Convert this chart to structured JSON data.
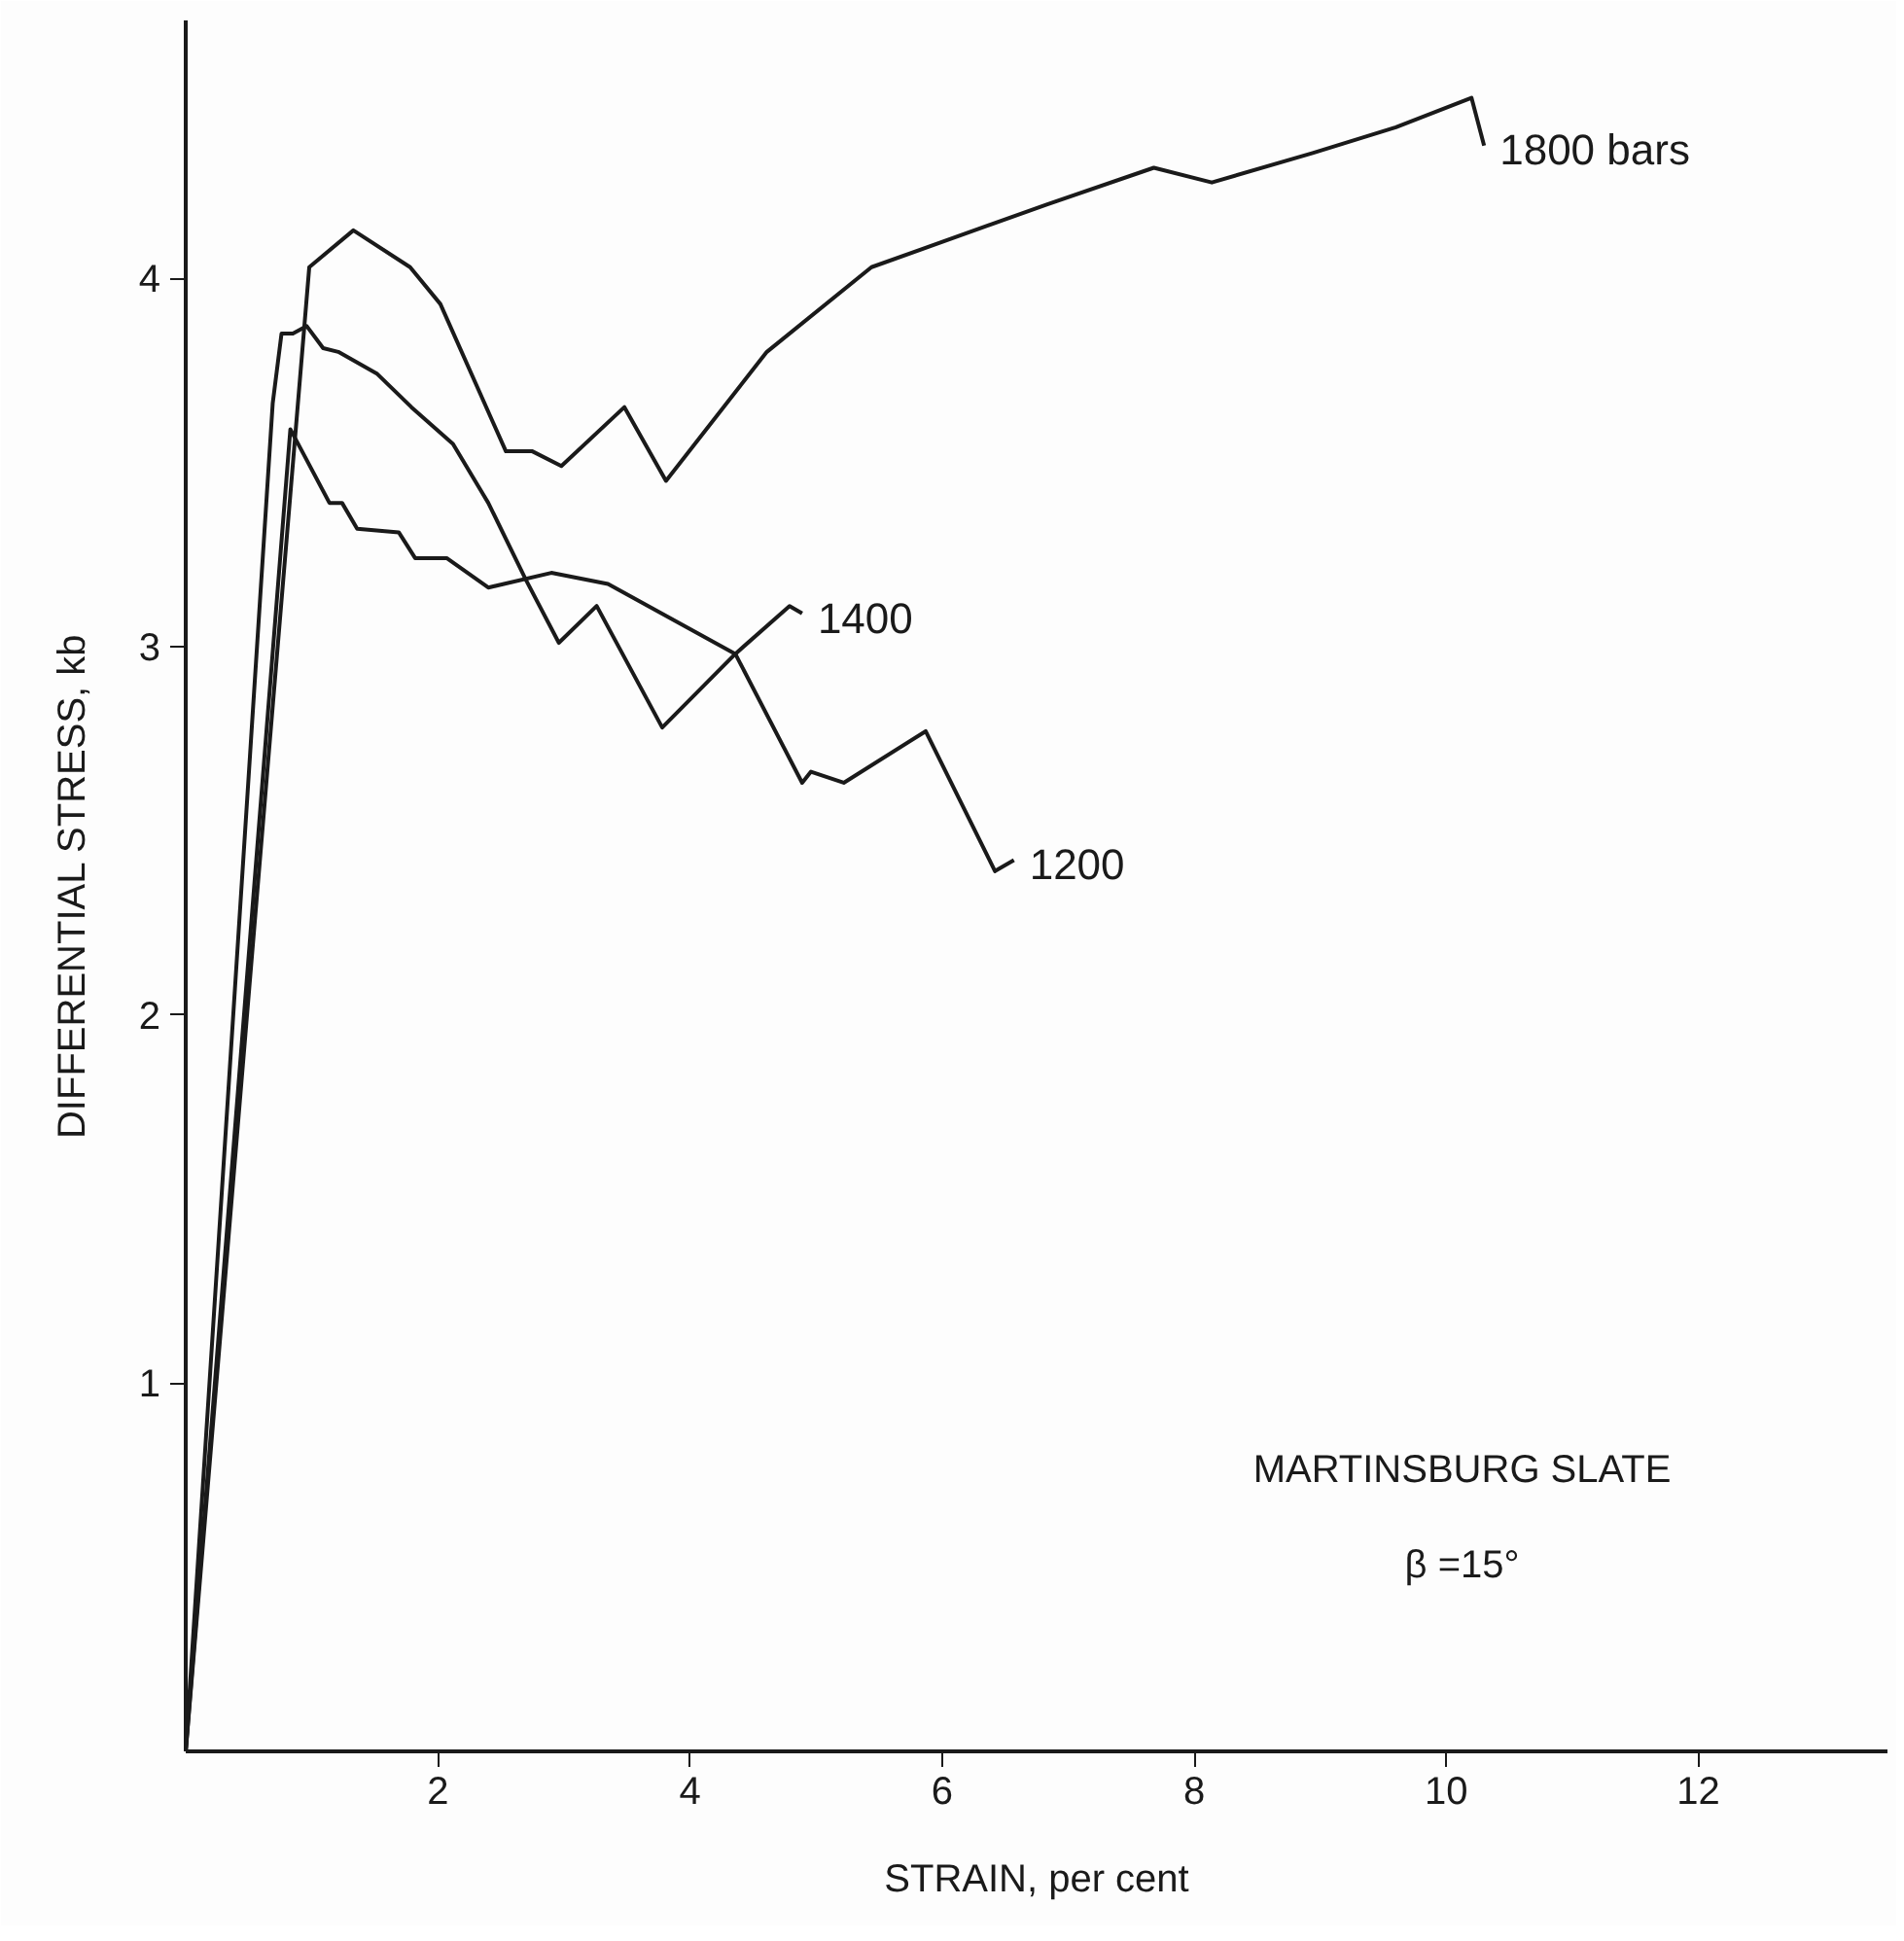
{
  "chart_data": {
    "type": "line",
    "xlabel": "STRAIN, per cent",
    "ylabel": "DIFFERENTIAL STRESS, kb",
    "xlim": [
      0,
      13.5
    ],
    "ylim": [
      0,
      4.7
    ],
    "xticks": [
      2,
      4,
      6,
      8,
      10,
      12
    ],
    "yticks": [
      1,
      2,
      3,
      4
    ],
    "grid": false,
    "marker": "none",
    "line_style": "solid",
    "series": [
      {
        "name": "1800 bars",
        "color": "#1a1a1a",
        "x": [
          0,
          0.98,
          1.33,
          1.78,
          2.02,
          2.54,
          2.75,
          2.98,
          3.48,
          3.81,
          4.61,
          5.44,
          6.83,
          7.68,
          8.14,
          8.94,
          9.6,
          10.2,
          10.3
        ],
        "values": [
          0,
          4.03,
          4.13,
          4.03,
          3.93,
          3.53,
          3.53,
          3.49,
          3.65,
          3.45,
          3.8,
          4.03,
          4.2,
          4.3,
          4.26,
          4.34,
          4.41,
          4.49,
          4.36
        ]
      },
      {
        "name": "1400",
        "color": "#1a1a1a",
        "x": [
          0,
          0.69,
          0.76,
          0.85,
          0.96,
          1.09,
          1.21,
          1.52,
          1.79,
          2.12,
          2.4,
          2.7,
          2.96,
          3.26,
          3.78,
          4.36,
          4.79,
          4.89
        ],
        "values": [
          0,
          3.66,
          3.85,
          3.85,
          3.87,
          3.81,
          3.8,
          3.74,
          3.65,
          3.55,
          3.39,
          3.18,
          3.01,
          3.11,
          2.78,
          2.98,
          3.11,
          3.09
        ]
      },
      {
        "name": "1200",
        "color": "#1a1a1a",
        "x": [
          0,
          0.83,
          1.14,
          1.24,
          1.36,
          1.69,
          1.82,
          2.07,
          2.4,
          2.9,
          3.35,
          4.36,
          4.89,
          4.96,
          5.22,
          5.87,
          6.42,
          6.57
        ],
        "values": [
          0,
          3.59,
          3.39,
          3.39,
          3.32,
          3.31,
          3.24,
          3.24,
          3.16,
          3.2,
          3.17,
          2.98,
          2.63,
          2.66,
          2.63,
          2.77,
          2.39,
          2.42
        ]
      }
    ],
    "annotations": [
      "MARTINSBURG SLATE",
      "β =15°"
    ]
  }
}
